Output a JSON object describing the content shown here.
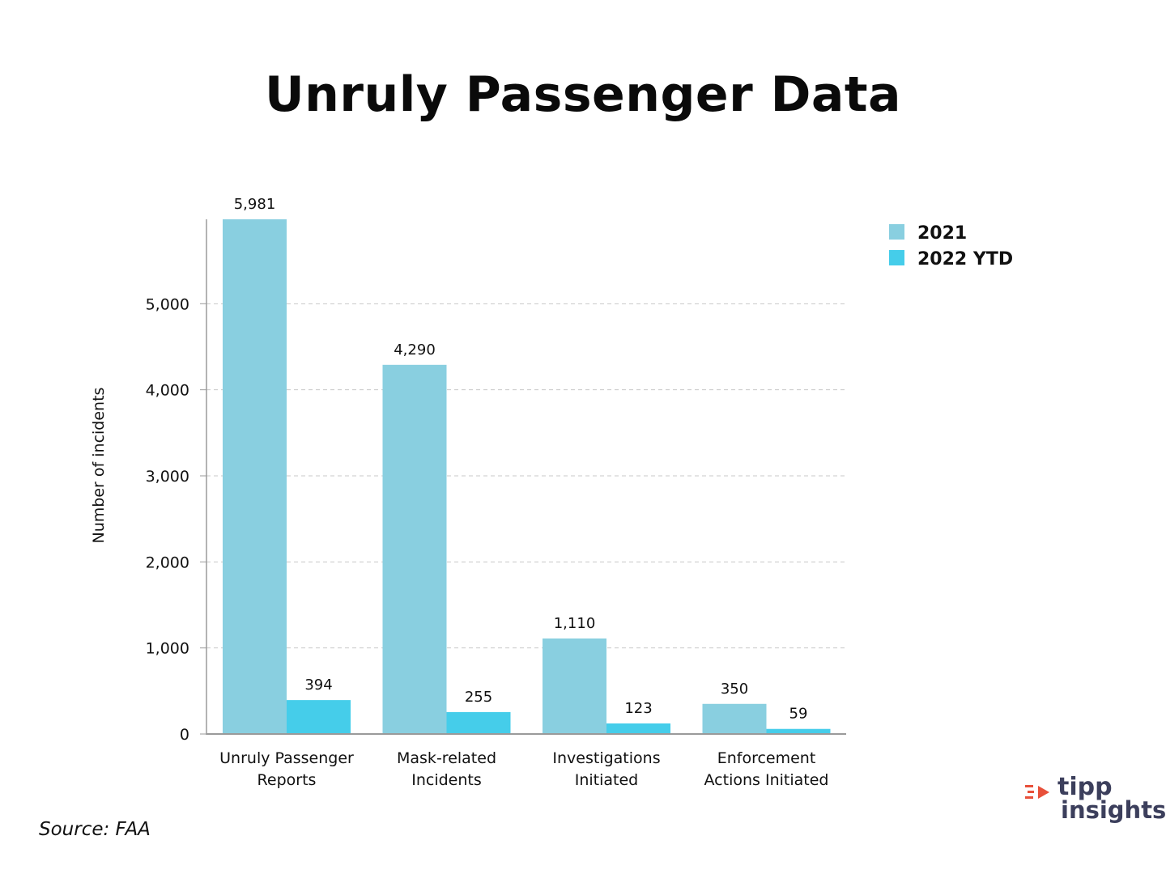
{
  "title": "Unruly Passenger Data",
  "source": "Source: FAA",
  "brand": {
    "line1": "tipp",
    "line2": "insights",
    "accent_color": "#e8503a",
    "text_color": "#3c3f5c"
  },
  "chart_data": {
    "type": "bar",
    "title": "Unruly Passenger Data",
    "xlabel": "",
    "ylabel": "Number of incidents",
    "ylim": [
      0,
      5981
    ],
    "yticks": [
      0,
      1000,
      2000,
      3000,
      4000,
      5000
    ],
    "ytick_labels": [
      "0",
      "1,000",
      "2,000",
      "3,000",
      "4,000",
      "5,000"
    ],
    "grid": true,
    "legend_position": "top-right",
    "categories": [
      [
        "Unruly Passenger",
        "Reports"
      ],
      [
        "Mask-related",
        "Incidents"
      ],
      [
        "Investigations",
        "Initiated"
      ],
      [
        "Enforcement",
        "Actions Initiated"
      ]
    ],
    "series": [
      {
        "name": "2021",
        "color": "#89cfe0",
        "values": [
          5981,
          4290,
          1110,
          350
        ],
        "labels": [
          "5,981",
          "4,290",
          "1,110",
          "350"
        ]
      },
      {
        "name": "2022 YTD",
        "color": "#45cdea",
        "values": [
          394,
          255,
          123,
          59
        ],
        "labels": [
          "394",
          "255",
          "123",
          "59"
        ]
      }
    ]
  }
}
